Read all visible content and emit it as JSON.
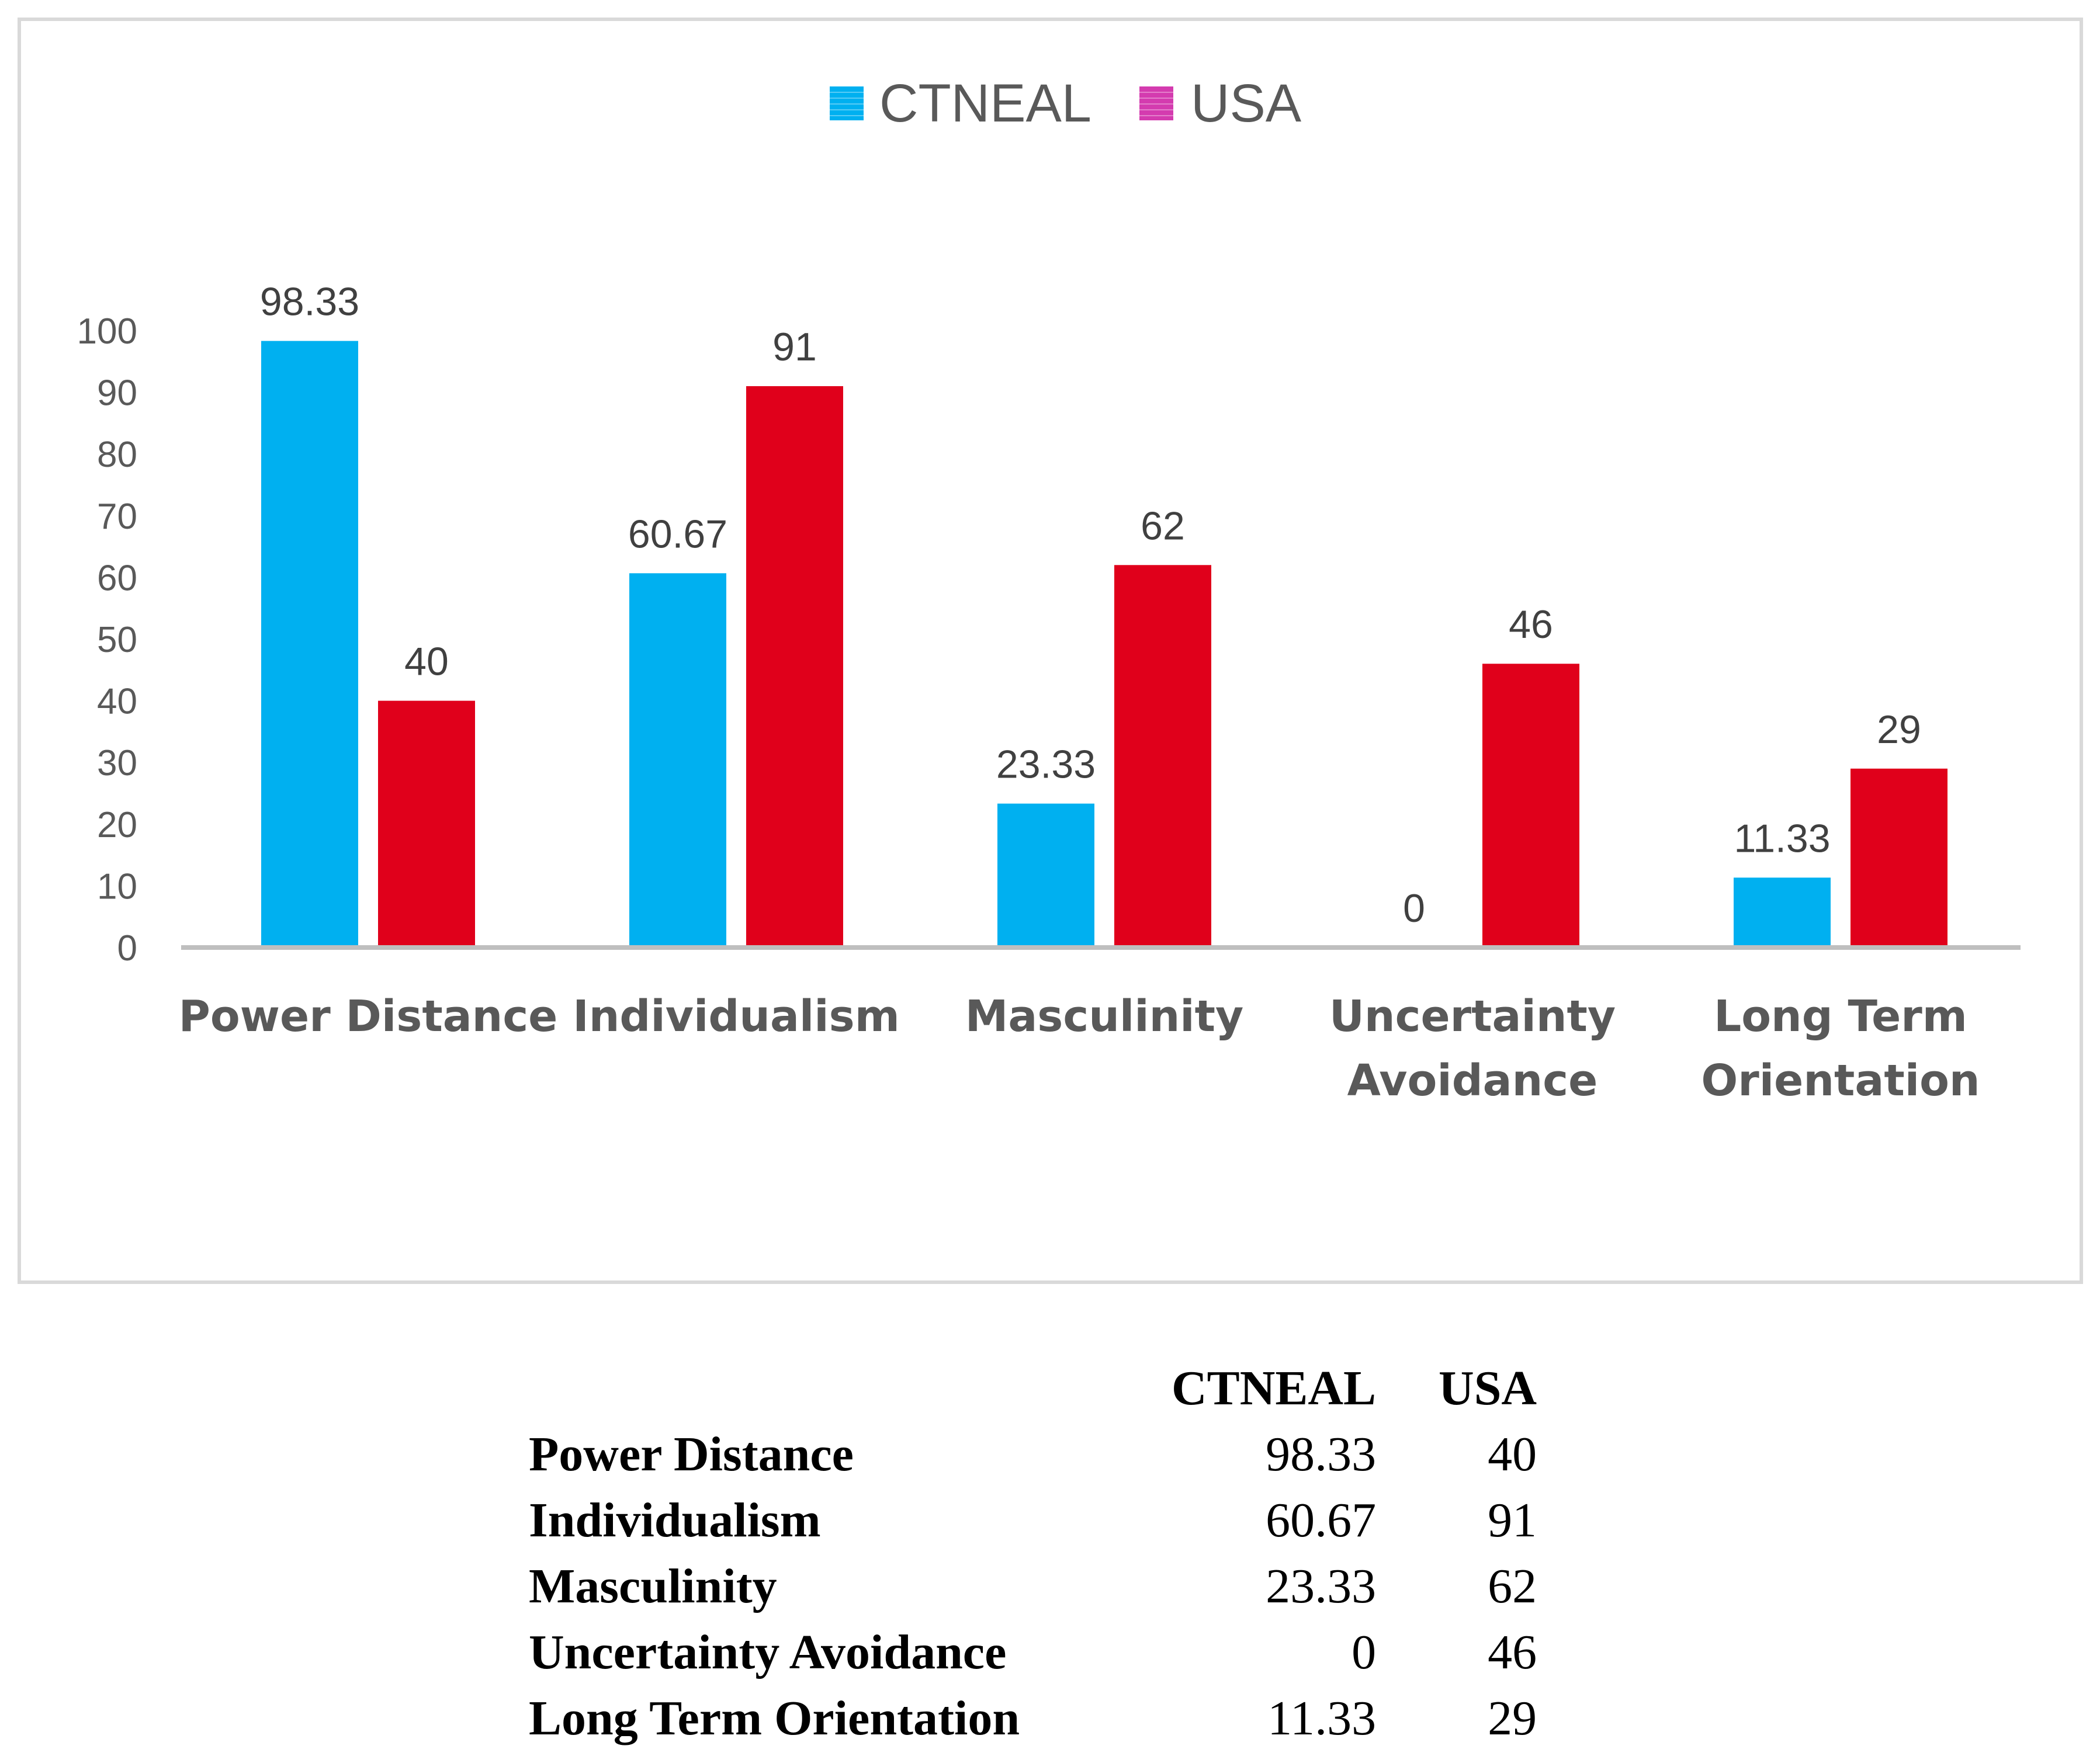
{
  "chart_data": {
    "type": "bar",
    "title": "",
    "xlabel": "",
    "ylabel": "",
    "categories": [
      [
        "Power Distance"
      ],
      [
        "Individualism"
      ],
      [
        "Masculinity"
      ],
      [
        "Uncertainty",
        "Avoidance"
      ],
      [
        "Long Term",
        "Orientation"
      ]
    ],
    "series": [
      {
        "name": "CTNEAL",
        "color": "#00B0F0",
        "values": [
          98.33,
          60.67,
          23.33,
          0,
          11.33
        ],
        "labels": [
          "98.33",
          "60.67",
          "23.33",
          "0",
          "11.33"
        ]
      },
      {
        "name": "USA",
        "color": "#E0001B",
        "values": [
          40,
          91,
          62,
          46,
          29
        ],
        "labels": [
          "40",
          "91",
          "62",
          "46",
          "29"
        ]
      }
    ],
    "ylim": [
      0,
      100
    ],
    "yticks": [
      0,
      10,
      20,
      30,
      40,
      50,
      60,
      70,
      80,
      90,
      100
    ],
    "grid": false,
    "legend": "top-center",
    "legend_marker_colors": [
      "#00B0F0",
      "#D43BAF"
    ]
  },
  "table": {
    "headers": [
      "",
      "CTNEAL",
      "USA"
    ],
    "rows": [
      {
        "label": "Power Distance",
        "ctneal": "98.33",
        "usa": "40"
      },
      {
        "label": "Individualism",
        "ctneal": "60.67",
        "usa": "91"
      },
      {
        "label": "Masculinity",
        "ctneal": "23.33",
        "usa": "62"
      },
      {
        "label": "Uncertainty Avoidance",
        "ctneal": "0",
        "usa": "46"
      },
      {
        "label": "Long Term Orientation",
        "ctneal": "11.33",
        "usa": "29"
      }
    ]
  }
}
